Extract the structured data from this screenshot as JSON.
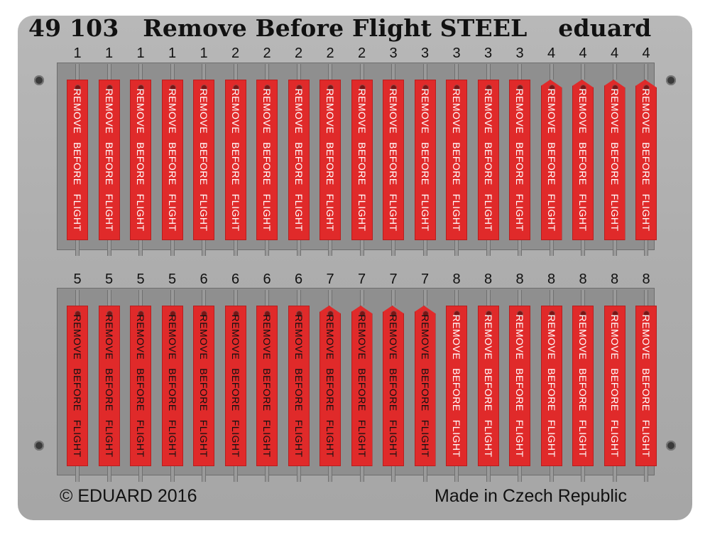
{
  "header": {
    "code": "49 103",
    "title": "Remove Before Flight STEEL",
    "brand": "eduard"
  },
  "footer": {
    "copyright": "© EDUARD 2016",
    "origin": "Made in Czech Republic"
  },
  "colors": {
    "sheet": "#adadad",
    "tag": "#e02a2a",
    "text_white": "#ffffff",
    "text_dark": "#111111"
  },
  "tag_words": [
    "REMOVE",
    "BEFORE",
    "FLIGHT"
  ],
  "rows": [
    {
      "numbers": [
        "1",
        "1",
        "1",
        "1",
        "1",
        "2",
        "2",
        "2",
        "2",
        "2",
        "3",
        "3",
        "3",
        "3",
        "3",
        "4",
        "4",
        "4",
        "4"
      ],
      "text_color": [
        "white",
        "white",
        "white",
        "white",
        "white",
        "white",
        "white",
        "white",
        "white",
        "white",
        "white",
        "white",
        "white",
        "white",
        "white",
        "white",
        "white",
        "white",
        "white"
      ],
      "cut_corner": [
        false,
        false,
        false,
        false,
        false,
        false,
        false,
        false,
        false,
        false,
        false,
        false,
        false,
        false,
        false,
        true,
        true,
        true,
        true
      ],
      "fine_print": [
        false,
        false,
        false,
        false,
        false,
        false,
        false,
        false,
        false,
        false,
        true,
        true,
        true,
        true,
        true,
        true,
        true,
        true,
        true
      ]
    },
    {
      "numbers": [
        "5",
        "5",
        "5",
        "5",
        "6",
        "6",
        "6",
        "6",
        "7",
        "7",
        "7",
        "7",
        "8",
        "8",
        "8",
        "8",
        "8",
        "8",
        "8"
      ],
      "text_color": [
        "dark",
        "dark",
        "dark",
        "dark",
        "dark",
        "dark",
        "dark",
        "dark",
        "dark",
        "dark",
        "dark",
        "dark",
        "white",
        "white",
        "white",
        "white",
        "white",
        "white",
        "white"
      ],
      "cut_corner": [
        false,
        false,
        false,
        false,
        false,
        false,
        false,
        false,
        true,
        true,
        true,
        true,
        false,
        false,
        false,
        false,
        false,
        false,
        false
      ],
      "fine_print": [
        false,
        false,
        false,
        false,
        false,
        false,
        false,
        false,
        false,
        false,
        false,
        false,
        false,
        false,
        false,
        false,
        false,
        false,
        false
      ]
    }
  ]
}
